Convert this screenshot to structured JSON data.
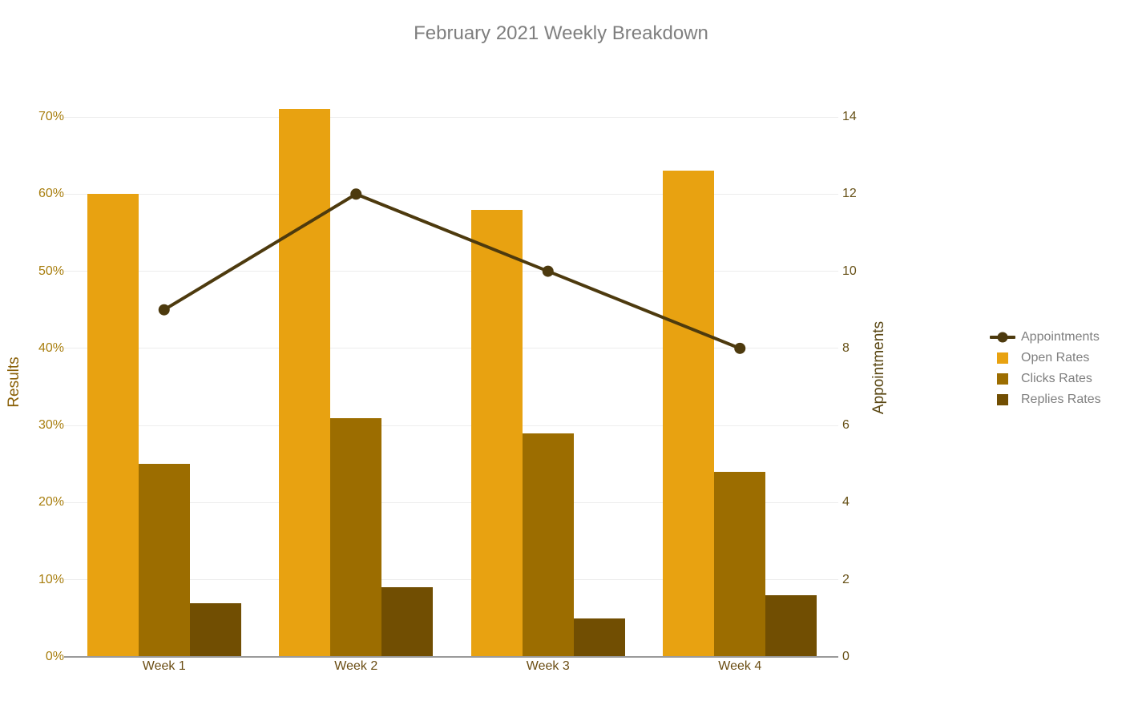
{
  "title": {
    "text": "February 2021 Weekly Breakdown",
    "color": "#7F7F7F"
  },
  "chart_data": {
    "type": "combo: grouped vertical bars + line on secondary axis",
    "categories": [
      "Week 1",
      "Week 2",
      "Week 3",
      "Week 4"
    ],
    "bar_series": [
      {
        "name": "Open Rates",
        "values": [
          60,
          71,
          58,
          63
        ],
        "unit": "%",
        "color": "#E8A211"
      },
      {
        "name": "Clicks Rates",
        "values": [
          25,
          31,
          29,
          24
        ],
        "unit": "%",
        "color": "#9C6D00"
      },
      {
        "name": "Replies Rates",
        "values": [
          7,
          9,
          5,
          8
        ],
        "unit": "%",
        "color": "#714E02"
      }
    ],
    "line_series": {
      "name": "Appointments",
      "values": [
        9,
        12,
        10,
        8
      ],
      "color": "#4D3A0E",
      "marker": "circle"
    },
    "left_axis": {
      "title": "Results",
      "tick_labels": [
        "0%",
        "10%",
        "20%",
        "30%",
        "40%",
        "50%",
        "60%",
        "70%"
      ],
      "range": [
        0,
        70
      ],
      "tick_color": "#A87E0E",
      "title_color": "#8A6007"
    },
    "right_axis": {
      "title": "Appointments",
      "tick_labels": [
        "0",
        "2",
        "4",
        "6",
        "8",
        "10",
        "12",
        "14"
      ],
      "range": [
        0,
        14
      ],
      "tick_color": "#675117",
      "title_color": "#594612"
    },
    "x_axis": {
      "tick_labels": [
        "Week 1",
        "Week 2",
        "Week 3",
        "Week 4"
      ],
      "tick_color": "#6B4D13"
    },
    "legend": {
      "position": "right-middle",
      "text_color": "#7F7F7F",
      "entries": [
        {
          "label": "Appointments",
          "swatch": "line-with-marker",
          "color": "#4D3A0E"
        },
        {
          "label": "Open Rates",
          "swatch": "square",
          "color": "#E8A211"
        },
        {
          "label": "Clicks Rates",
          "swatch": "square",
          "color": "#9C6D00"
        },
        {
          "label": "Replies Rates",
          "swatch": "square",
          "color": "#714E02"
        }
      ]
    },
    "grid": {
      "show": true,
      "color": "#EDEDED"
    },
    "axis_line_color": "#9A9A9A",
    "background": "#FFFFFF"
  }
}
